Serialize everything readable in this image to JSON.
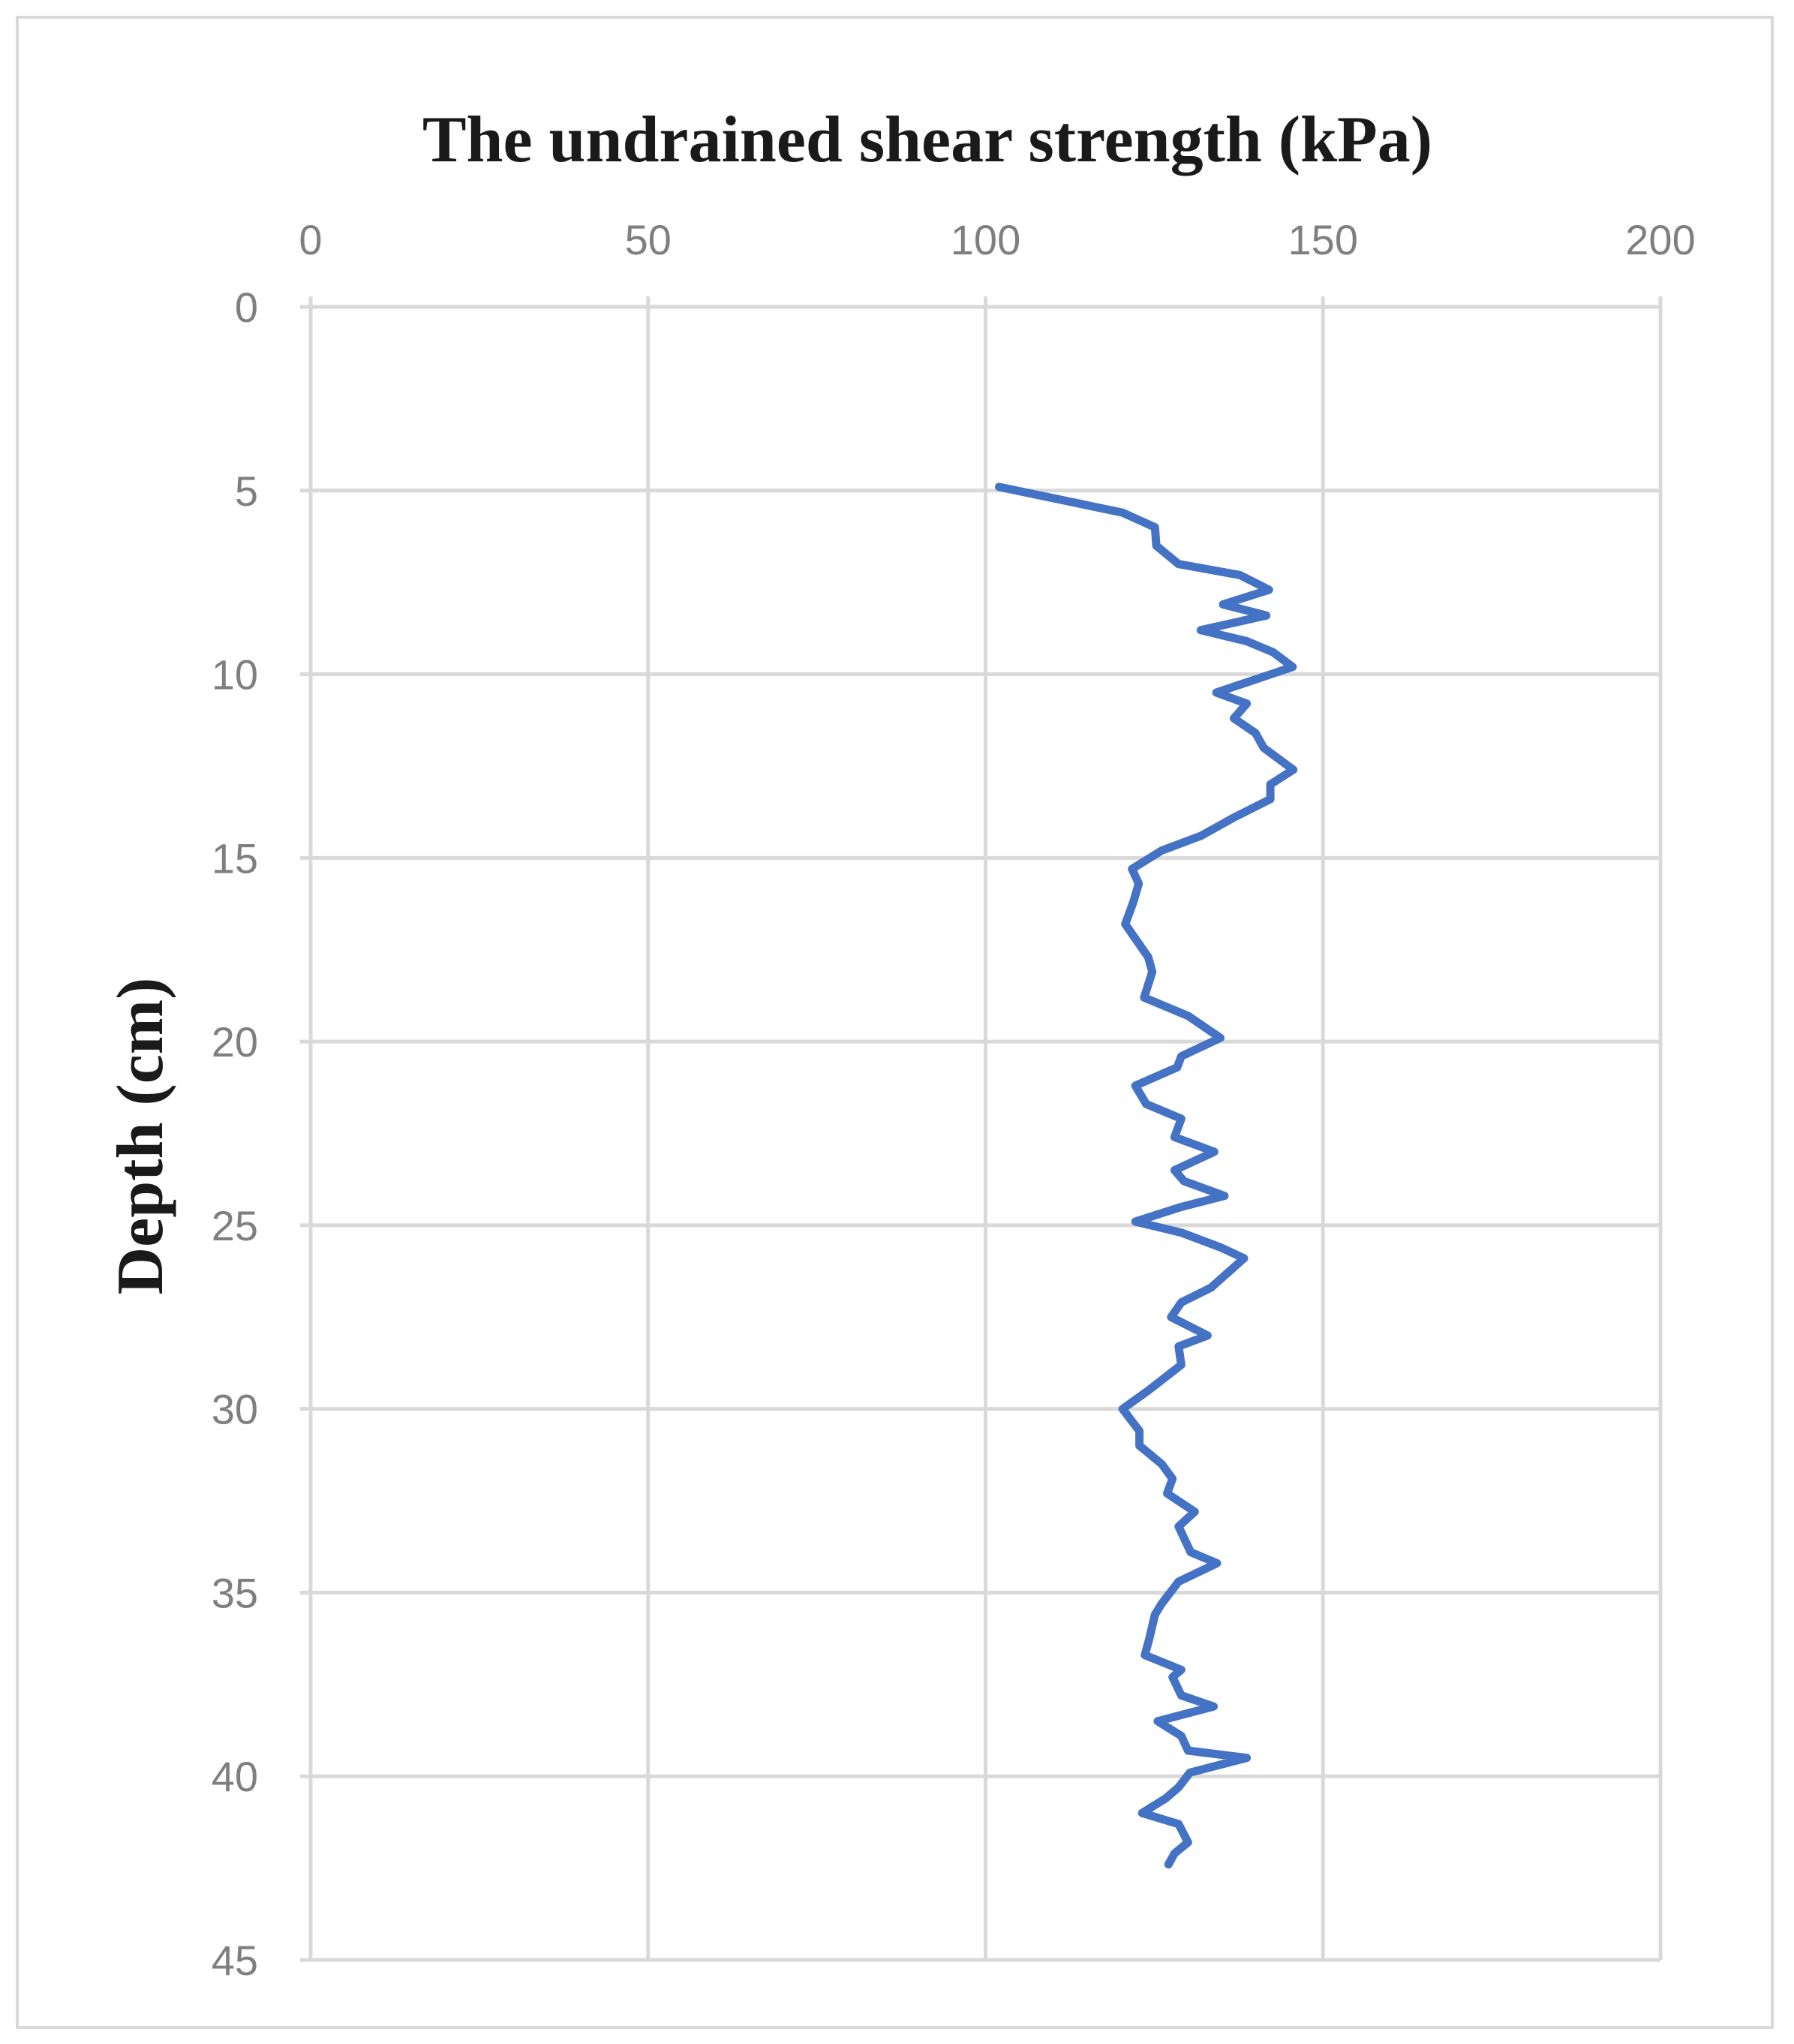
{
  "chart_data": {
    "type": "line",
    "title": "The undrained shear strength (kPa)",
    "xlabel": "The undrained shear strength (kPa)",
    "ylabel": "Depth (cm)",
    "xlim": [
      0,
      200
    ],
    "ylim": [
      0,
      45
    ],
    "y_inverted": true,
    "x_axis_position": "top",
    "x_ticks": [
      0,
      50,
      100,
      150,
      200
    ],
    "y_ticks": [
      0,
      5,
      10,
      15,
      20,
      25,
      30,
      35,
      40,
      45
    ],
    "grid": true,
    "line_color": "#4472c4",
    "series": [
      {
        "name": "Undrained shear strength",
        "points": [
          [
            102,
            4.9
          ],
          [
            120.3,
            5.6
          ],
          [
            125.1,
            6.0
          ],
          [
            125.3,
            6.5
          ],
          [
            128.6,
            7.0
          ],
          [
            137.7,
            7.3
          ],
          [
            142,
            7.7
          ],
          [
            135.2,
            8.1
          ],
          [
            141.6,
            8.4
          ],
          [
            131.9,
            8.8
          ],
          [
            138.7,
            9.1
          ],
          [
            142.6,
            9.4
          ],
          [
            145.5,
            9.8
          ],
          [
            134.2,
            10.5
          ],
          [
            138.7,
            10.8
          ],
          [
            136.8,
            11.2
          ],
          [
            140,
            11.6
          ],
          [
            141.2,
            12.0
          ],
          [
            145.6,
            12.6
          ],
          [
            142.2,
            13.0
          ],
          [
            142.2,
            13.4
          ],
          [
            136.8,
            13.9
          ],
          [
            131.9,
            14.4
          ],
          [
            126.1,
            14.8
          ],
          [
            121.7,
            15.3
          ],
          [
            122.7,
            15.7
          ],
          [
            121.9,
            16.2
          ],
          [
            120.7,
            16.8
          ],
          [
            122.2,
            17.2
          ],
          [
            124.1,
            17.7
          ],
          [
            124.7,
            18.1
          ],
          [
            123.5,
            18.8
          ],
          [
            130,
            19.3
          ],
          [
            134.8,
            19.9
          ],
          [
            129,
            20.4
          ],
          [
            128.4,
            20.7
          ],
          [
            122.2,
            21.2
          ],
          [
            123.8,
            21.7
          ],
          [
            129,
            22.1
          ],
          [
            128,
            22.6
          ],
          [
            133.9,
            23.0
          ],
          [
            128,
            23.5
          ],
          [
            129.4,
            23.8
          ],
          [
            135.4,
            24.2
          ],
          [
            129,
            24.5
          ],
          [
            122.2,
            24.9
          ],
          [
            129,
            25.2
          ],
          [
            134.8,
            25.6
          ],
          [
            138.3,
            25.9
          ],
          [
            133.4,
            26.7
          ],
          [
            129,
            27.1
          ],
          [
            127.5,
            27.5
          ],
          [
            132.9,
            28.0
          ],
          [
            128.6,
            28.3
          ],
          [
            129,
            28.8
          ],
          [
            124.1,
            29.5
          ],
          [
            120.3,
            30.0
          ],
          [
            122.8,
            30.6
          ],
          [
            122.8,
            31.0
          ],
          [
            126.1,
            31.5
          ],
          [
            127.7,
            31.9
          ],
          [
            126.9,
            32.3
          ],
          [
            131,
            32.8
          ],
          [
            128.6,
            33.2
          ],
          [
            130.4,
            33.9
          ],
          [
            134.3,
            34.2
          ],
          [
            128.6,
            34.7
          ],
          [
            126.1,
            35.3
          ],
          [
            125.1,
            35.6
          ],
          [
            124.2,
            36.3
          ],
          [
            123.6,
            36.7
          ],
          [
            129,
            37.1
          ],
          [
            127.7,
            37.3
          ],
          [
            129,
            37.8
          ],
          [
            133.8,
            38.1
          ],
          [
            125.5,
            38.5
          ],
          [
            129,
            38.9
          ],
          [
            130,
            39.3
          ],
          [
            138.7,
            39.5
          ],
          [
            130.3,
            39.9
          ],
          [
            128.6,
            40.3
          ],
          [
            126.7,
            40.6
          ],
          [
            123.2,
            41.0
          ],
          [
            128.6,
            41.3
          ],
          [
            130,
            41.8
          ],
          [
            128,
            42.1
          ],
          [
            127.1,
            42.4
          ]
        ]
      }
    ]
  }
}
